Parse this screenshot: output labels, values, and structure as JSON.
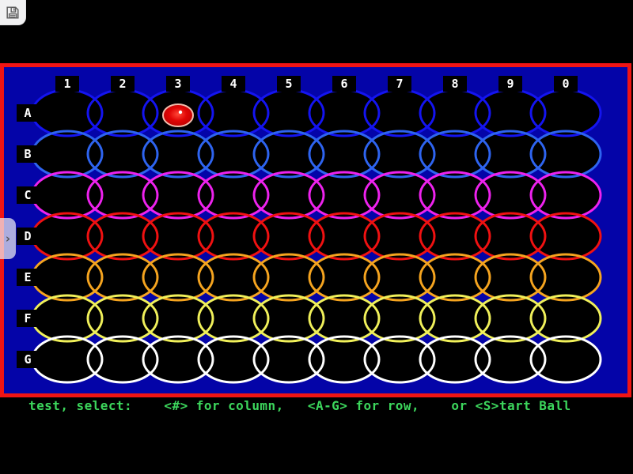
{
  "viewer": {
    "icons": {
      "save": "floppy-disk-icon",
      "panel_toggle": "chevron-right-icon"
    }
  },
  "game": {
    "columns": [
      "1",
      "2",
      "3",
      "4",
      "5",
      "6",
      "7",
      "8",
      "9",
      "0"
    ],
    "rows": [
      {
        "label": "A",
        "color": "#1414F0"
      },
      {
        "label": "B",
        "color": "#2E64F0"
      },
      {
        "label": "C",
        "color": "#EE22EE"
      },
      {
        "label": "D",
        "color": "#F01111"
      },
      {
        "label": "E",
        "color": "#F5A41F"
      },
      {
        "label": "F",
        "color": "#F0F05A"
      },
      {
        "label": "G",
        "color": "#FFFFFF"
      }
    ],
    "ball": {
      "row": "A",
      "column": "3",
      "fill": "#E00505",
      "fill_center": "#FF4838",
      "fill_edge": "#B00000",
      "outline": "#F2BCAC",
      "highlight": "#FFFFFF"
    },
    "status_text": "test, select:    <#> for column,   <A-G> for row,    or <S>tart Ball",
    "colors": {
      "board_bg": "#0404A8",
      "frame": "#F01414",
      "circle_fill": "#000000",
      "label_bg": "#000000",
      "label_fg": "#FFFFFF",
      "status_fg": "#3CD65C"
    }
  }
}
